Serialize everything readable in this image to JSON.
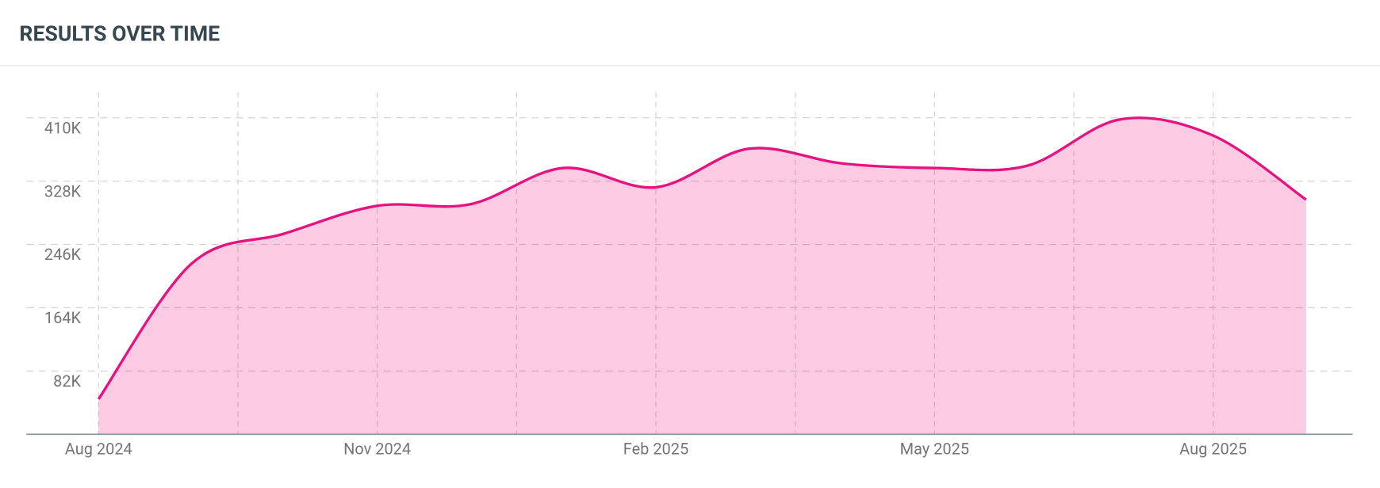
{
  "chart_data": {
    "type": "area",
    "title": "RESULTS OVER TIME",
    "x": [
      "2024-08",
      "2024-09",
      "2024-10",
      "2024-11",
      "2024-12",
      "2025-01",
      "2025-02",
      "2025-03",
      "2025-04",
      "2025-05",
      "2025-06",
      "2025-07",
      "2025-08",
      "2025-09"
    ],
    "series": [
      {
        "name": "Results",
        "color": "#e6127f",
        "values": [
          45600,
          221000,
          260000,
          296000,
          298000,
          345000,
          320000,
          370000,
          351000,
          345000,
          348000,
          408000,
          387000,
          304000
        ]
      }
    ],
    "xticks": [
      {
        "value": "2024-08",
        "label": "Aug 2024"
      },
      {
        "value": "2024-11",
        "label": "Nov 2024"
      },
      {
        "value": "2025-02",
        "label": "Feb 2025"
      },
      {
        "value": "2025-05",
        "label": "May 2025"
      },
      {
        "value": "2025-08",
        "label": "Aug 2025"
      }
    ],
    "ylim": [
      0,
      443000
    ],
    "yticks": [
      {
        "value": 82000,
        "label": "82K"
      },
      {
        "value": 164000,
        "label": "164K"
      },
      {
        "value": 246000,
        "label": "246K"
      },
      {
        "value": 328000,
        "label": "328K"
      },
      {
        "value": 410000,
        "label": "410K"
      }
    ],
    "grid": true
  }
}
